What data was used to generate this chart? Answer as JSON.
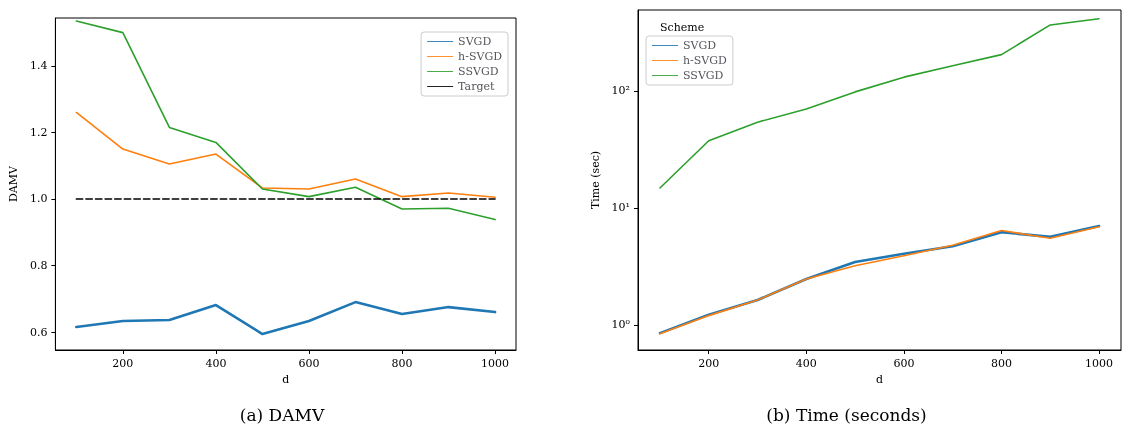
{
  "chart_data": [
    {
      "type": "line",
      "title": "(a) DAMV",
      "xlabel": "d",
      "ylabel": "DAMV",
      "x": [
        100,
        200,
        300,
        400,
        500,
        600,
        700,
        800,
        900,
        1000
      ],
      "xlim": [
        55,
        1045
      ],
      "xticks": [
        200,
        400,
        600,
        800,
        1000
      ],
      "ylim": [
        0.546,
        1.544
      ],
      "yticks": [
        0.6,
        0.8,
        {
          "value": 1,
          "label": "1.0"
        },
        1.2,
        1.4
      ],
      "grid": false,
      "legend": "top right",
      "marker": "none",
      "series": [
        {
          "name": "SVGD",
          "color": "#1f77b4",
          "values": [
            0.615,
            0.633,
            0.636,
            0.681,
            0.594,
            0.633,
            0.69,
            0.654,
            0.675,
            0.66
          ]
        },
        {
          "name": "h-SVGD",
          "color": "#ff7f0e",
          "values": [
            1.26,
            1.15,
            1.105,
            1.135,
            1.033,
            1.03,
            1.06,
            1.007,
            1.018,
            1.005
          ]
        },
        {
          "name": "SSVGD",
          "color": "#2ca02c",
          "values": [
            1.535,
            1.5,
            1.215,
            1.17,
            1.03,
            1.007,
            1.035,
            0.97,
            0.972,
            0.938
          ]
        },
        {
          "name": "Target",
          "color": "#000000",
          "line_style": "dashed",
          "values": [
            1,
            1,
            1,
            1,
            1,
            1,
            1,
            1,
            1,
            1
          ]
        }
      ]
    },
    {
      "type": "line",
      "title": "(b) Time (seconds)",
      "xlabel": "d",
      "ylabel": "Time (sec)",
      "legend_title": "Scheme",
      "x": [
        100,
        200,
        300,
        400,
        500,
        600,
        700,
        800,
        900,
        1000
      ],
      "xlim": [
        55,
        1045
      ],
      "xticks": [
        200,
        400,
        600,
        800,
        1000
      ],
      "log": "y",
      "ylim": [
        0.61,
        491
      ],
      "yticks": [
        {
          "value": 1,
          "label": "10⁰"
        },
        {
          "value": 10,
          "label": "10¹"
        },
        {
          "value": 100,
          "label": "10²"
        }
      ],
      "grid": false,
      "legend": "top left",
      "marker": "none",
      "series": [
        {
          "name": "SVGD",
          "color": "#1f77b4",
          "values": [
            0.85,
            1.22,
            1.63,
            2.47,
            3.45,
            4.05,
            4.7,
            6.2,
            5.65,
            7.0
          ]
        },
        {
          "name": "h-SVGD",
          "color": "#ff7f0e",
          "values": [
            0.84,
            1.2,
            1.63,
            2.47,
            3.2,
            3.9,
            4.8,
            6.4,
            5.5,
            6.9
          ]
        },
        {
          "name": "SSVGD",
          "color": "#2ca02c",
          "values": [
            14.8,
            37.5,
            54,
            70,
            98,
            131,
            164,
            204,
            366,
            413
          ]
        }
      ]
    }
  ]
}
